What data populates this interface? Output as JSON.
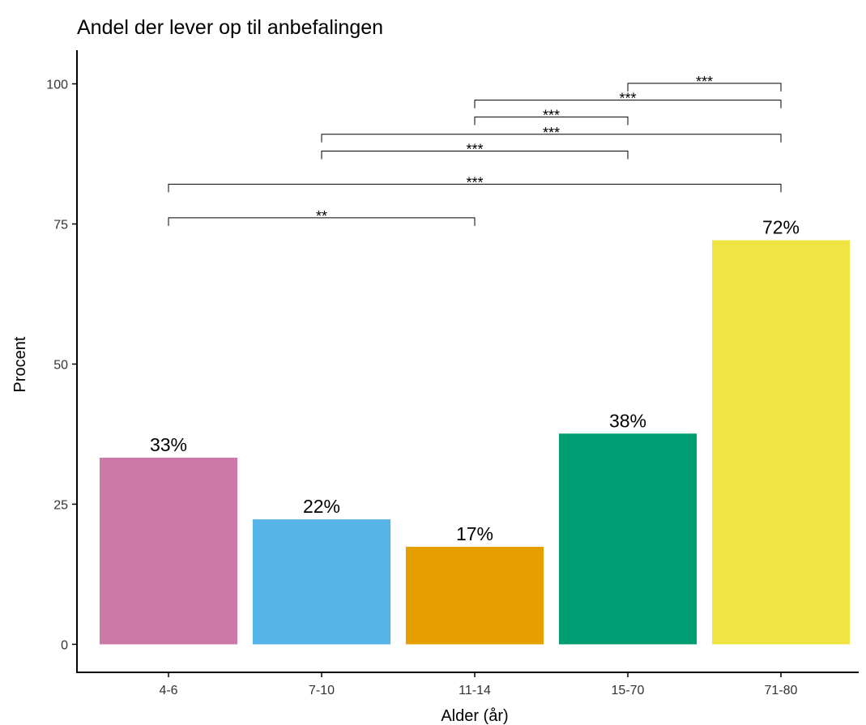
{
  "chart_data": {
    "type": "bar",
    "title": "Andel der lever op til anbefalingen",
    "xlabel": "Alder (år)",
    "ylabel": "Procent",
    "categories": [
      "4-6",
      "7-10",
      "11-14",
      "15-70",
      "71-80"
    ],
    "values": [
      33.3,
      22.3,
      17.4,
      37.6,
      72.1
    ],
    "value_labels": [
      "33%",
      "22%",
      "17%",
      "38%",
      "72%"
    ],
    "colors": [
      "#CC79A7",
      "#56B4E9",
      "#E69F00",
      "#009E73",
      "#F0E442"
    ],
    "ylim": [
      -5,
      106
    ],
    "yticks": [
      0,
      25,
      50,
      75,
      100
    ],
    "brackets": [
      {
        "from": "4-6",
        "to": "11-14",
        "y": 76.1,
        "label": "**"
      },
      {
        "from": "4-6",
        "to": "71-80",
        "y": 82.1,
        "label": "***"
      },
      {
        "from": "7-10",
        "to": "15-70",
        "y": 88.0,
        "label": "***"
      },
      {
        "from": "7-10",
        "to": "71-80",
        "y": 91.0,
        "label": "***"
      },
      {
        "from": "11-14",
        "to": "15-70",
        "y": 94.1,
        "label": "***"
      },
      {
        "from": "11-14",
        "to": "71-80",
        "y": 97.1,
        "label": "***"
      },
      {
        "from": "15-70",
        "to": "71-80",
        "y": 100.1,
        "label": "***"
      }
    ]
  }
}
